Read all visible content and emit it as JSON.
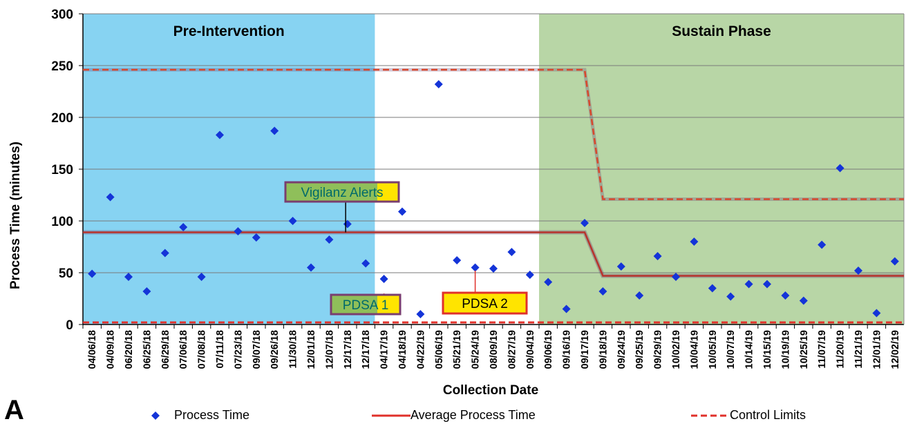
{
  "panel_label": "A",
  "chart_data": {
    "type": "scatter",
    "xlabel": "Collection Date",
    "ylabel": "Process Time (minutes)",
    "ylim": [
      0,
      300
    ],
    "yticks": [
      0,
      50,
      100,
      150,
      200,
      250,
      300
    ],
    "grid": true,
    "legend_position": "bottom",
    "categories": [
      "04/06/18",
      "04/09/18",
      "06/20/18",
      "06/25/18",
      "06/29/18",
      "07/06/18",
      "07/08/18",
      "07/11/18",
      "07/23/18",
      "09/07/18",
      "09/26/18",
      "11/30/18",
      "12/01/18",
      "12/07/18",
      "12/17/18",
      "12/17/18",
      "04/17/19",
      "04/18/19",
      "04/22/19",
      "05/06/19",
      "05/21/19",
      "05/24/19",
      "08/09/19",
      "08/27/19",
      "09/04/19",
      "09/06/19",
      "09/16/19",
      "09/17/19",
      "09/18/19",
      "09/24/19",
      "09/25/19",
      "09/29/19",
      "10/02/19",
      "10/04/19",
      "10/05/19",
      "10/07/19",
      "10/14/19",
      "10/15/19",
      "10/19/19",
      "10/25/19",
      "11/07/19",
      "11/20/19",
      "11/21/19",
      "12/01/19",
      "12/02/19"
    ],
    "phases": [
      {
        "label": "Pre-Intervention",
        "start_index": 0,
        "end_index": 15,
        "color": "#87d3f2"
      },
      {
        "label": "Sustain Phase",
        "start_index": 25,
        "end_index": 44,
        "color": "#b8d6a6"
      }
    ],
    "series": [
      {
        "name": "Process Time",
        "kind": "points",
        "color": "#1434d8",
        "values": [
          49,
          123,
          46,
          32,
          69,
          94,
          46,
          183,
          90,
          84,
          187,
          100,
          55,
          82,
          97,
          59,
          44,
          109,
          10,
          232,
          62,
          55,
          54,
          70,
          48,
          41,
          15,
          98,
          32,
          56,
          28,
          66,
          46,
          80,
          35,
          27,
          39,
          39,
          28,
          23,
          77,
          151,
          52,
          11,
          61
        ]
      },
      {
        "name": "Average Process Time",
        "kind": "line",
        "color": "#e0302a",
        "segments": [
          {
            "from_index": 0,
            "to_index": 27,
            "value": 89
          },
          {
            "from_index": 27,
            "to_index": 28,
            "value_from": 89,
            "value_to": 47
          },
          {
            "from_index": 28,
            "to_index": 44,
            "value": 47
          }
        ]
      },
      {
        "name": "Control Limits",
        "kind": "dashed",
        "color": "#e0302a",
        "upper_segments": [
          {
            "from_index": 0,
            "to_index": 27,
            "value": 246
          },
          {
            "from_index": 27,
            "to_index": 28,
            "value_from": 246,
            "value_to": 121
          },
          {
            "from_index": 28,
            "to_index": 44,
            "value": 121
          }
        ],
        "lower_value": 2
      }
    ],
    "annotations": [
      {
        "text": "Vigilanz Alerts",
        "box_color": "#8fbf5a",
        "highlight_color": "#ffe400",
        "text_color": "#006a6a",
        "pointer_index": 13.9,
        "pointer_value": 89
      },
      {
        "text": "PDSA 1",
        "box_color": "#8fbf5a",
        "highlight_color": "#ffe400",
        "text_color": "#006a6a",
        "pointer_index": 16,
        "pointer_value": 30
      },
      {
        "text": "PDSA 2",
        "box_color": "#ffe400",
        "text_color": "#000000",
        "pointer_index": 21,
        "pointer_value": 52
      }
    ]
  }
}
